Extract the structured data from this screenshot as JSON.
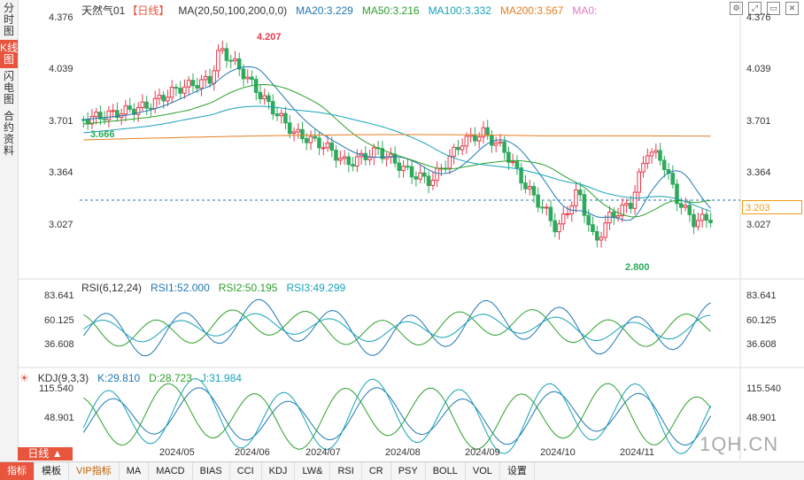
{
  "sidebar": {
    "tabs": [
      {
        "label": "分时图",
        "active": false
      },
      {
        "label": "K线图",
        "active": true
      },
      {
        "label": "闪电图",
        "active": false
      },
      {
        "label": "合约资料",
        "active": false
      }
    ]
  },
  "main_legend": {
    "symbol": "天然气01",
    "period": "【日线】",
    "ma_label": "MA(20,50,100,200,0,0)",
    "ma20": "MA20:3.229",
    "ma50": "MA50:3.216",
    "ma100": "MA100:3.332",
    "ma200": "MA200:3.567",
    "ma0": "MA0:"
  },
  "colors": {
    "up": "#e8394d",
    "down": "#2eaa5c",
    "ma20": "#1f77b4",
    "ma50": "#2ca02c",
    "ma100": "#17a2b8",
    "ma200": "#e67e22",
    "ma0": "#e377c2"
  },
  "price_axis": [
    "4.376",
    "4.039",
    "3.701",
    "3.364",
    "3.027"
  ],
  "current_price": "3.203",
  "annotations": {
    "high": "4.207",
    "low": "2.800",
    "start": "3.666"
  },
  "rsi": {
    "legend": "RSI(6,12,24)",
    "rsi1": "RSI1:52.000",
    "rsi2": "RSI2:50.195",
    "rsi3": "RSI3:49.299",
    "axis": [
      "83.641",
      "60.125",
      "36.608"
    ]
  },
  "kdj": {
    "legend": "KDJ(9,3,3)",
    "k": "K:29.810",
    "d": "D:28.723",
    "j": "J:31.984",
    "axis": [
      "115.540",
      "48.901"
    ]
  },
  "x_axis": [
    "2024/05",
    "2024/06",
    "2024/07",
    "2024/08",
    "2024/09",
    "2024/10",
    "2024/11"
  ],
  "period_button": "日线 ▲",
  "bottom_tabs": [
    {
      "label": "指标",
      "active": true
    },
    {
      "label": "模板",
      "active": false
    },
    {
      "label": "VIP指标",
      "active": false,
      "vip": true
    },
    {
      "label": "MA"
    },
    {
      "label": "MACD"
    },
    {
      "label": "BIAS"
    },
    {
      "label": "CCI"
    },
    {
      "label": "KDJ"
    },
    {
      "label": "LW&"
    },
    {
      "label": "RSI"
    },
    {
      "label": "CR"
    },
    {
      "label": "PSY"
    },
    {
      "label": "BOLL"
    },
    {
      "label": "VOL"
    },
    {
      "label": "设置"
    }
  ],
  "watermark": "1QH.CN"
}
